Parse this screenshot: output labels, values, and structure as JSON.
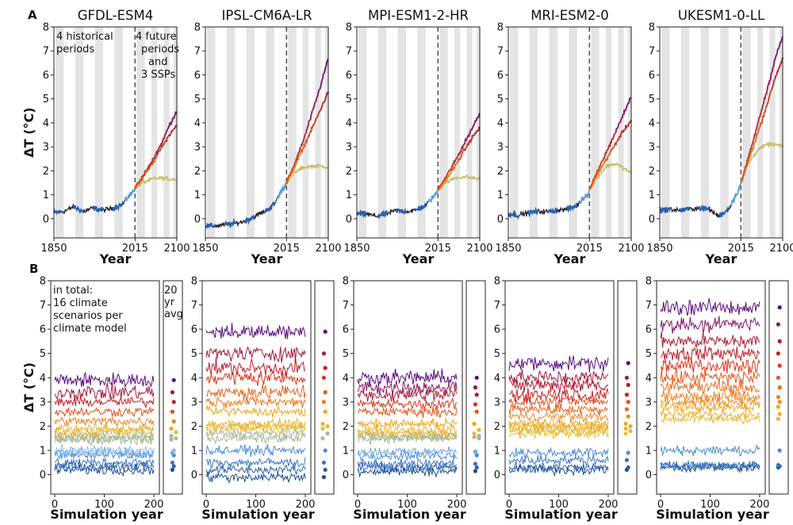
{
  "panel_labels": {
    "a": "A",
    "b": "B"
  },
  "y_label": "ΔT (°C)",
  "y_ticks": [
    "0",
    "1",
    "2",
    "3",
    "4",
    "5",
    "6",
    "7",
    "8"
  ],
  "colors": {
    "historical_a": "#2a5ea8",
    "historical_b": "#222222",
    "hist_recent": "#5c9be0",
    "ssp126": "#c8c070",
    "ssp245": "#f0a820",
    "ssp370": "#e04a18",
    "ssp585_a": "#b0182a",
    "ssp585_b": "#6a1080",
    "period_shading": "#e4e4e4",
    "divider": "#555555"
  },
  "annotations": {
    "hist_periods": [
      "4 historical",
      "periods"
    ],
    "future_periods": [
      "4 future",
      "periods",
      "and",
      "3 SSPs"
    ],
    "total": [
      "in total:",
      "16 climate",
      "scenarios per",
      "climate model"
    ],
    "avg_label": [
      "20",
      "yr",
      "avg"
    ]
  },
  "chart_data": [
    {
      "type": "line",
      "panel": "A",
      "title": "GFDL-ESM4",
      "xlabel": "Year",
      "ylabel": "ΔT (°C)",
      "x_ticks": [
        "1850",
        "2015",
        "2100"
      ],
      "xlim": [
        1850,
        2100
      ],
      "ylim": [
        -0.8,
        8
      ],
      "series": [
        {
          "name": "historical",
          "x": [
            1850,
            1870,
            1890,
            1910,
            1930,
            1950,
            1970,
            1990,
            2000,
            2010,
            2015
          ],
          "values": [
            0.25,
            0.3,
            0.5,
            0.3,
            0.45,
            0.35,
            0.45,
            0.6,
            0.9,
            1.1,
            1.3
          ]
        },
        {
          "name": "ssp126",
          "x": [
            2015,
            2030,
            2050,
            2070,
            2085,
            2100
          ],
          "values": [
            1.3,
            1.5,
            1.65,
            1.7,
            1.65,
            1.65
          ]
        },
        {
          "name": "ssp370",
          "x": [
            2015,
            2030,
            2050,
            2070,
            2085,
            2100
          ],
          "values": [
            1.3,
            1.7,
            2.3,
            3.0,
            3.5,
            3.9
          ]
        },
        {
          "name": "ssp585",
          "x": [
            2015,
            2030,
            2050,
            2070,
            2085,
            2100
          ],
          "values": [
            1.3,
            1.75,
            2.4,
            3.2,
            3.9,
            4.5
          ]
        }
      ]
    },
    {
      "type": "line",
      "panel": "A",
      "title": "IPSL-CM6A-LR",
      "xlabel": "Year",
      "ylabel": "ΔT (°C)",
      "x_ticks": [
        "1850",
        "2015",
        "2100"
      ],
      "xlim": [
        1850,
        2100
      ],
      "ylim": [
        -0.8,
        8
      ],
      "series": [
        {
          "name": "historical",
          "x": [
            1850,
            1870,
            1890,
            1910,
            1930,
            1950,
            1970,
            1990,
            2000,
            2010,
            2015
          ],
          "values": [
            -0.3,
            -0.3,
            -0.25,
            -0.2,
            -0.1,
            0.1,
            0.3,
            0.6,
            1.0,
            1.3,
            1.5
          ]
        },
        {
          "name": "ssp126",
          "x": [
            2015,
            2030,
            2050,
            2070,
            2085,
            2100
          ],
          "values": [
            1.5,
            1.9,
            2.15,
            2.2,
            2.2,
            2.15
          ]
        },
        {
          "name": "ssp370",
          "x": [
            2015,
            2030,
            2050,
            2070,
            2085,
            2100
          ],
          "values": [
            1.5,
            2.1,
            3.0,
            3.9,
            4.6,
            5.3
          ]
        },
        {
          "name": "ssp585",
          "x": [
            2015,
            2030,
            2050,
            2070,
            2085,
            2100
          ],
          "values": [
            1.5,
            2.2,
            3.3,
            4.6,
            5.6,
            6.7
          ]
        }
      ]
    },
    {
      "type": "line",
      "panel": "A",
      "title": "MPI-ESM1-2-HR",
      "xlabel": "Year",
      "ylabel": "ΔT (°C)",
      "x_ticks": [
        "1850",
        "2015",
        "2100"
      ],
      "xlim": [
        1850,
        2100
      ],
      "ylim": [
        -0.8,
        8
      ],
      "series": [
        {
          "name": "historical",
          "x": [
            1850,
            1870,
            1890,
            1910,
            1930,
            1950,
            1970,
            1990,
            2000,
            2010,
            2015
          ],
          "values": [
            0.2,
            0.2,
            0.1,
            0.2,
            0.35,
            0.3,
            0.35,
            0.55,
            0.8,
            1.0,
            1.2
          ]
        },
        {
          "name": "ssp126",
          "x": [
            2015,
            2030,
            2050,
            2070,
            2085,
            2100
          ],
          "values": [
            1.2,
            1.5,
            1.7,
            1.75,
            1.7,
            1.65
          ]
        },
        {
          "name": "ssp370",
          "x": [
            2015,
            2030,
            2050,
            2070,
            2085,
            2100
          ],
          "values": [
            1.2,
            1.6,
            2.2,
            2.9,
            3.4,
            3.8
          ]
        },
        {
          "name": "ssp585",
          "x": [
            2015,
            2030,
            2050,
            2070,
            2085,
            2100
          ],
          "values": [
            1.2,
            1.7,
            2.4,
            3.2,
            3.8,
            4.4
          ]
        }
      ]
    },
    {
      "type": "line",
      "panel": "A",
      "title": "MRI-ESM2-0",
      "xlabel": "Year",
      "ylabel": "ΔT (°C)",
      "x_ticks": [
        "1850",
        "2015",
        "2100"
      ],
      "xlim": [
        1850,
        2100
      ],
      "ylim": [
        -0.8,
        8
      ],
      "series": [
        {
          "name": "historical",
          "x": [
            1850,
            1870,
            1890,
            1910,
            1930,
            1950,
            1970,
            1990,
            2000,
            2010,
            2015
          ],
          "values": [
            0.2,
            0.15,
            0.25,
            0.3,
            0.3,
            0.35,
            0.4,
            0.55,
            0.8,
            1.0,
            1.2
          ]
        },
        {
          "name": "ssp126",
          "x": [
            2015,
            2030,
            2050,
            2070,
            2085,
            2100
          ],
          "values": [
            1.2,
            1.7,
            2.2,
            2.3,
            2.1,
            1.9
          ]
        },
        {
          "name": "ssp370",
          "x": [
            2015,
            2030,
            2050,
            2070,
            2085,
            2100
          ],
          "values": [
            1.2,
            1.8,
            2.5,
            3.2,
            3.7,
            4.1
          ]
        },
        {
          "name": "ssp585",
          "x": [
            2015,
            2030,
            2050,
            2070,
            2085,
            2100
          ],
          "values": [
            1.2,
            1.9,
            2.8,
            3.7,
            4.4,
            5.1
          ]
        }
      ]
    },
    {
      "type": "line",
      "panel": "A",
      "title": "UKESM1-0-LL",
      "xlabel": "Year",
      "ylabel": "ΔT (°C)",
      "x_ticks": [
        "1850",
        "2015",
        "2100"
      ],
      "xlim": [
        1850,
        2100
      ],
      "ylim": [
        -0.8,
        8
      ],
      "series": [
        {
          "name": "historical",
          "x": [
            1850,
            1870,
            1890,
            1910,
            1930,
            1950,
            1970,
            1990,
            2000,
            2010,
            2015
          ],
          "values": [
            0.35,
            0.4,
            0.35,
            0.4,
            0.45,
            0.4,
            0.1,
            0.4,
            0.8,
            1.2,
            1.5
          ]
        },
        {
          "name": "ssp126",
          "x": [
            2015,
            2030,
            2050,
            2070,
            2085,
            2100
          ],
          "values": [
            1.5,
            2.3,
            2.9,
            3.1,
            3.1,
            3.0
          ]
        },
        {
          "name": "ssp370",
          "x": [
            2015,
            2030,
            2050,
            2070,
            2085,
            2100
          ],
          "values": [
            1.5,
            2.4,
            3.6,
            4.9,
            5.9,
            6.7
          ]
        },
        {
          "name": "ssp585",
          "x": [
            2015,
            2030,
            2050,
            2070,
            2085,
            2100
          ],
          "values": [
            1.5,
            2.5,
            4.0,
            5.5,
            6.7,
            7.6
          ]
        }
      ]
    },
    {
      "type": "line",
      "panel": "B",
      "title": "GFDL-ESM4",
      "xlabel": "Simulation year",
      "ylabel": "ΔT (°C)",
      "x_ticks": [
        "0",
        "100",
        "200"
      ],
      "xlim": [
        0,
        200
      ],
      "ylim": [
        -0.8,
        8
      ],
      "scenario_means": [
        0.2,
        0.35,
        0.5,
        0.8,
        0.9,
        1.0,
        1.45,
        1.5,
        1.6,
        1.75,
        1.9,
        2.2,
        2.6,
        3.0,
        3.4,
        3.9
      ]
    },
    {
      "type": "line",
      "panel": "B",
      "title": "IPSL-CM6A-LR",
      "xlabel": "Simulation year",
      "ylabel": "ΔT (°C)",
      "x_ticks": [
        "0",
        "100",
        "200"
      ],
      "xlim": [
        0,
        200
      ],
      "ylim": [
        -0.8,
        8
      ],
      "scenario_means": [
        -0.1,
        0.2,
        0.5,
        1.0,
        1.5,
        1.7,
        1.9,
        2.0,
        2.1,
        2.6,
        3.0,
        3.4,
        4.0,
        4.4,
        5.0,
        5.9
      ]
    },
    {
      "type": "line",
      "panel": "B",
      "title": "MPI-ESM1-2-HR",
      "xlabel": "Simulation year",
      "ylabel": "ΔT (°C)",
      "x_ticks": [
        "0",
        "100",
        "200"
      ],
      "xlim": [
        0,
        200
      ],
      "ylim": [
        -0.8,
        8
      ],
      "scenario_means": [
        0.15,
        0.3,
        0.45,
        0.8,
        0.95,
        1.5,
        1.55,
        1.6,
        1.7,
        1.85,
        2.1,
        2.6,
        2.9,
        3.3,
        3.6,
        4.0
      ]
    },
    {
      "type": "line",
      "panel": "B",
      "title": "MRI-ESM2-0",
      "xlabel": "Simulation year",
      "ylabel": "ΔT (°C)",
      "x_ticks": [
        "0",
        "100",
        "200"
      ],
      "xlim": [
        0,
        200
      ],
      "ylim": [
        -0.8,
        8
      ],
      "scenario_means": [
        0.2,
        0.3,
        0.6,
        0.9,
        1.7,
        1.8,
        1.9,
        2.0,
        2.1,
        2.4,
        2.7,
        3.0,
        3.3,
        3.7,
        4.0,
        4.6
      ]
    },
    {
      "type": "line",
      "panel": "B",
      "title": "UKESM1-0-LL",
      "xlabel": "Simulation year",
      "ylabel": "ΔT (°C)",
      "x_ticks": [
        "0",
        "100",
        "200"
      ],
      "xlim": [
        0,
        200
      ],
      "ylim": [
        -0.8,
        8
      ],
      "scenario_means": [
        0.3,
        0.35,
        0.4,
        1.0,
        2.3,
        2.5,
        2.8,
        3.0,
        3.2,
        3.6,
        4.0,
        4.5,
        5.0,
        5.5,
        6.2,
        6.9
      ]
    }
  ]
}
